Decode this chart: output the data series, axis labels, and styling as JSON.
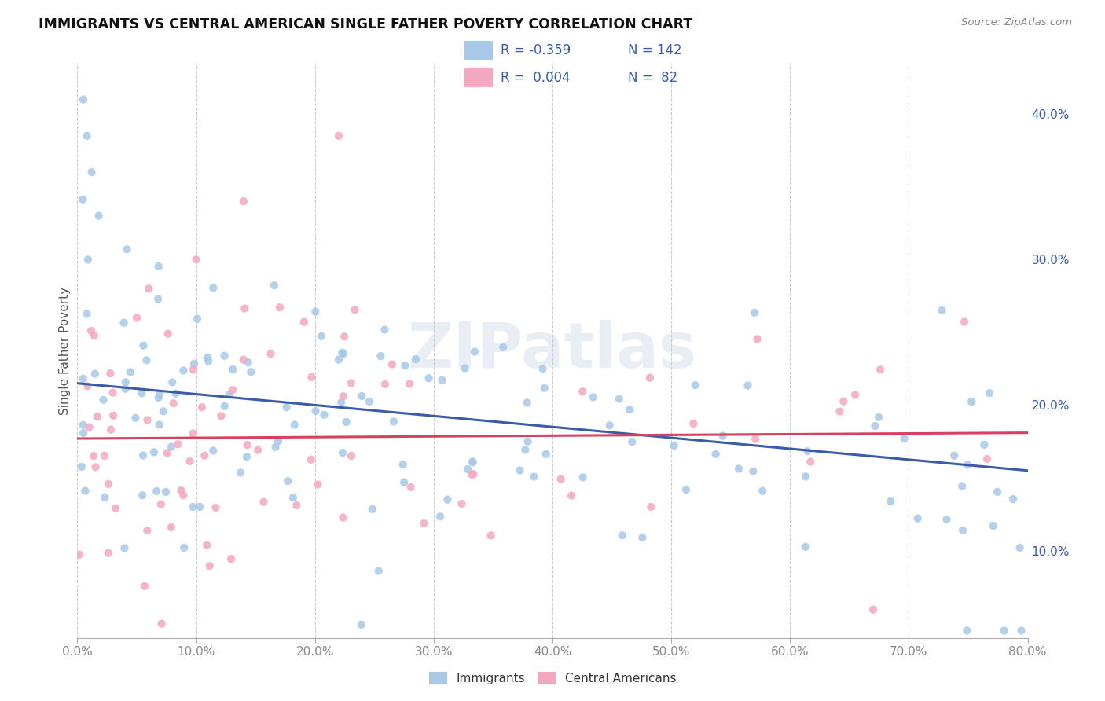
{
  "title": "IMMIGRANTS VS CENTRAL AMERICAN SINGLE FATHER POVERTY CORRELATION CHART",
  "source": "Source: ZipAtlas.com",
  "ylabel": "Single Father Poverty",
  "color_immigrants": "#a8c8e8",
  "color_central": "#f4a8c0",
  "color_line_imm": "#3a5ca8",
  "color_line_cen": "#d84060",
  "color_legend_text": "#3a5ca8",
  "color_legend_border": "#cccccc",
  "color_grid": "#cccccc",
  "color_tick": "#888888",
  "xlim": [
    0.0,
    0.8
  ],
  "ylim": [
    0.04,
    0.435
  ],
  "xticks": [
    0.0,
    0.1,
    0.2,
    0.3,
    0.4,
    0.5,
    0.6,
    0.7,
    0.8
  ],
  "yticks": [
    0.1,
    0.2,
    0.3,
    0.4
  ],
  "watermark": "ZIPatlas",
  "imm_line_x0": 0.0,
  "imm_line_y0": 0.215,
  "imm_line_x1": 0.8,
  "imm_line_y1": 0.155,
  "cen_line_x0": 0.0,
  "cen_line_y0": 0.177,
  "cen_line_x1": 0.8,
  "cen_line_y1": 0.181
}
